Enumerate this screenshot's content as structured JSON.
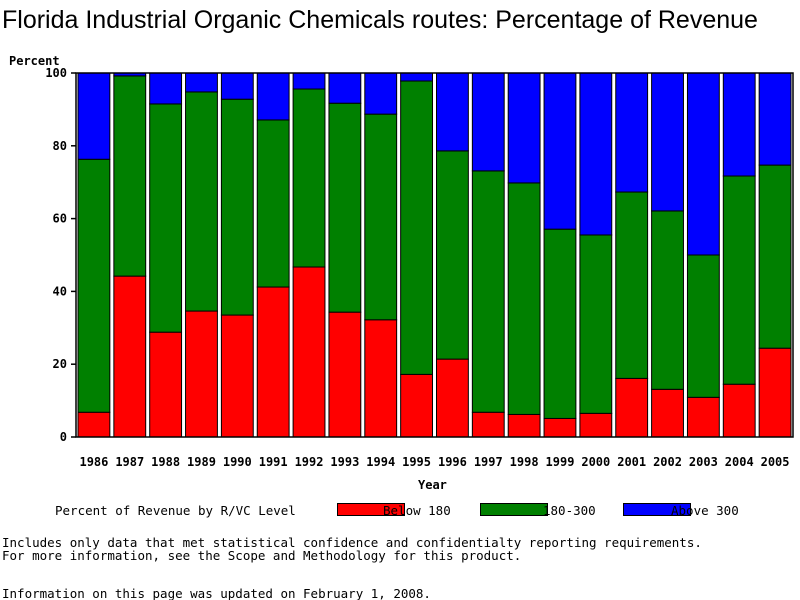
{
  "chart_data": {
    "type": "bar",
    "stacked": true,
    "title": "Florida Industrial Organic Chemicals routes: Percentage of Revenue",
    "xlabel": "Year",
    "ylabel": "Percent",
    "ylim": [
      0,
      100
    ],
    "yticks": [
      "0",
      "20",
      "40",
      "60",
      "80",
      "100"
    ],
    "categories": [
      "1986",
      "1987",
      "1988",
      "1989",
      "1990",
      "1991",
      "1992",
      "1993",
      "1994",
      "1995",
      "1996",
      "1997",
      "1998",
      "1999",
      "2000",
      "2001",
      "2002",
      "2003",
      "2004",
      "2005"
    ],
    "legend_title": "Percent of Revenue by R/VC Level",
    "legend_position": "bottom",
    "series": [
      {
        "name": "Below 180",
        "color": "#ff0000",
        "values": [
          6.8,
          44.2,
          28.8,
          34.6,
          33.5,
          41.2,
          46.7,
          34.3,
          32.2,
          17.2,
          21.4,
          6.8,
          6.2,
          5.1,
          6.5,
          16.1,
          13.1,
          10.9,
          14.5,
          24.4
        ]
      },
      {
        "name": "180-300",
        "color": "#008000",
        "values": [
          69.5,
          55.0,
          62.7,
          60.2,
          59.3,
          45.9,
          48.9,
          57.4,
          56.5,
          80.6,
          57.2,
          66.3,
          63.6,
          52.0,
          49.0,
          51.2,
          49.0,
          39.1,
          57.2,
          50.3
        ]
      },
      {
        "name": "Above 300",
        "color": "#0000ff",
        "values": [
          23.7,
          0.8,
          8.5,
          5.2,
          7.2,
          12.9,
          4.4,
          8.3,
          11.3,
          2.2,
          21.4,
          26.9,
          30.2,
          42.9,
          44.5,
          32.7,
          37.9,
          50.0,
          28.3,
          25.3
        ]
      }
    ]
  },
  "footer": {
    "line1": "Includes only data that met statistical confidence and confidentialty reporting requirements.",
    "line2": "For more information, see the Scope and Methodology for this product.",
    "line3": "Information on this page was updated on February 1, 2008."
  }
}
